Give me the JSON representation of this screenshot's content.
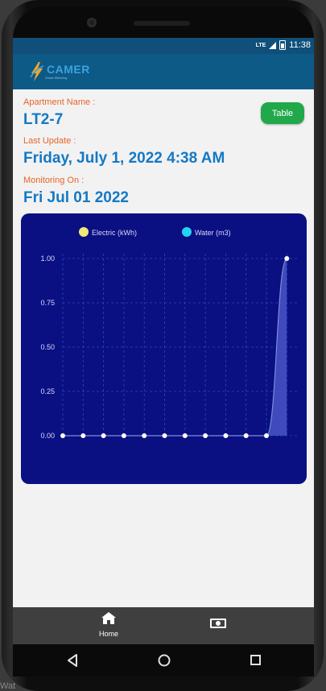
{
  "status_bar": {
    "network": "LTE",
    "time": "11:38"
  },
  "app_bar": {
    "logo_text": "CAMER",
    "logo_subtext": "Smart Metering",
    "brand_color": "#0d5a86"
  },
  "apartment": {
    "label": "Apartment Name :",
    "value": "LT2-7"
  },
  "last_update": {
    "label": "Last Update :",
    "value": "Friday, July 1, 2022 4:38 AM"
  },
  "monitoring": {
    "label": "Monitoring On :",
    "value": "Fri Jul 01 2022"
  },
  "table_button": {
    "label": "Table",
    "color": "#21a84a"
  },
  "chart_data": {
    "type": "line",
    "background": "#0a0f82",
    "grid": true,
    "legend_position": "top-center",
    "ylim": [
      0,
      1
    ],
    "yticks": [
      "1.00",
      "0.75",
      "0.50",
      "0.25",
      "0.00"
    ],
    "series": [
      {
        "name": "Electric (kWh)",
        "color": "#f0e878",
        "values": []
      },
      {
        "name": "Water (m3)",
        "color": "#25d3f0",
        "values": [
          0,
          0,
          0,
          0,
          0,
          0,
          0,
          0,
          0,
          0,
          0,
          1
        ]
      }
    ]
  },
  "bottom_nav": {
    "home_label": "Home",
    "home_icon": "home-icon",
    "money_icon": "money-icon"
  },
  "android_nav": {
    "back_icon": "back-icon",
    "home_icon": "circle-icon",
    "recent_icon": "square-icon"
  },
  "bottom_edge_text": "Wat"
}
